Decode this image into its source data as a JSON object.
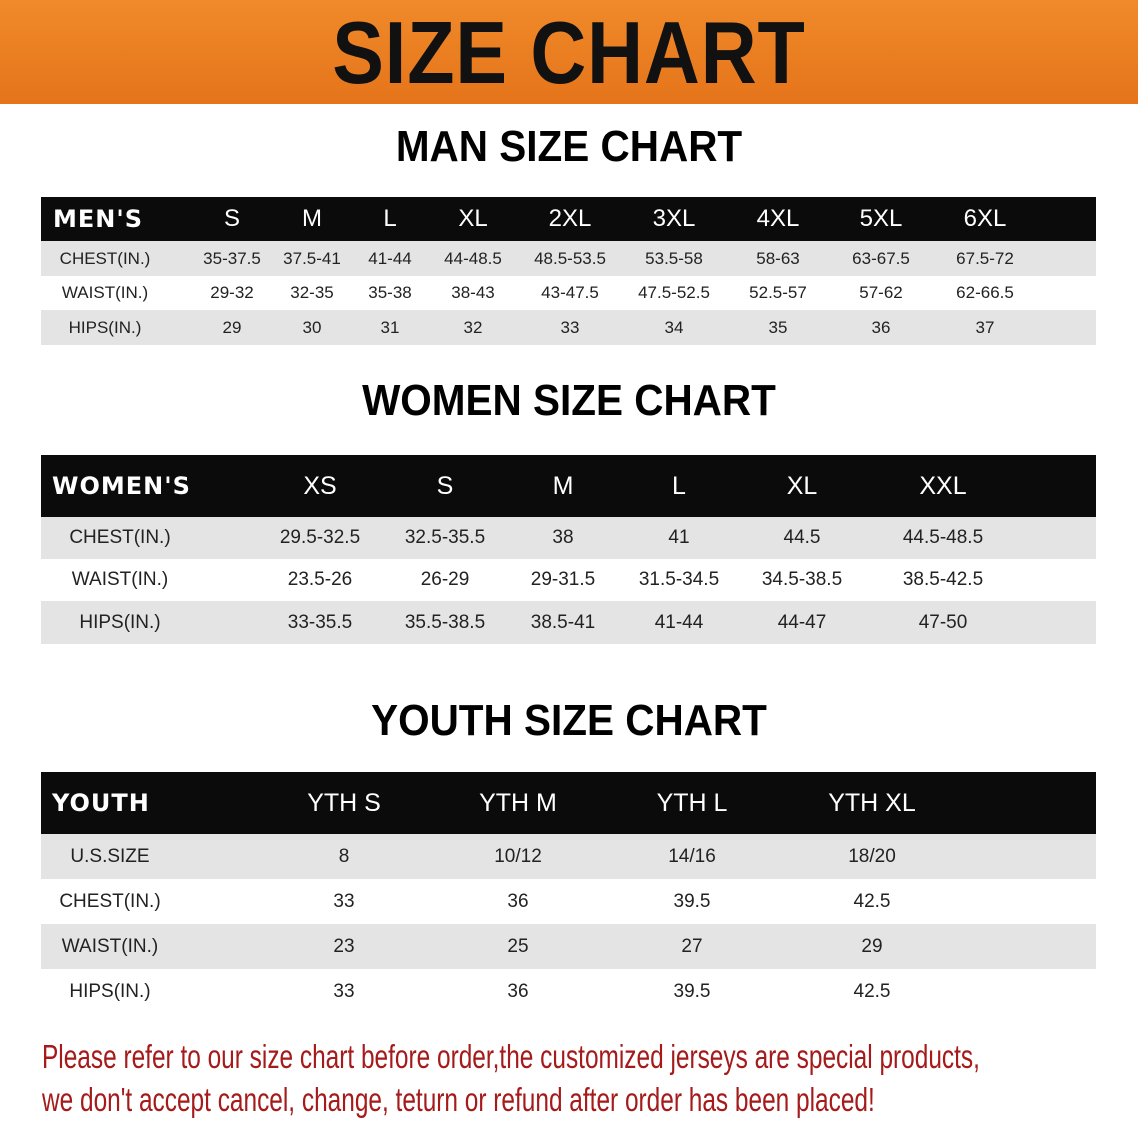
{
  "banner": {
    "title": "SIZE CHART",
    "color": "#e97d1f"
  },
  "men": {
    "title": "MAN SIZE CHART",
    "header": [
      "MEN'S",
      "S",
      "M",
      "L",
      "XL",
      "2XL",
      "3XL",
      "4XL",
      "5XL",
      "6XL"
    ],
    "rows": [
      [
        "CHEST(IN.)",
        "35-37.5",
        "37.5-41",
        "41-44",
        "44-48.5",
        "48.5-53.5",
        "53.5-58",
        "58-63",
        "63-67.5",
        "67.5-72"
      ],
      [
        "WAIST(IN.)",
        "29-32",
        "32-35",
        "35-38",
        "38-43",
        "43-47.5",
        "47.5-52.5",
        "52.5-57",
        "57-62",
        "62-66.5"
      ],
      [
        "HIPS(IN.)",
        "29",
        "30",
        "31",
        "32",
        "33",
        "34",
        "35",
        "36",
        "37"
      ]
    ]
  },
  "women": {
    "title": "WOMEN SIZE CHART",
    "header": [
      "WOMEN'S",
      "XS",
      "S",
      "M",
      "L",
      "XL",
      "XXL"
    ],
    "rows": [
      [
        "CHEST(IN.)",
        "29.5-32.5",
        "32.5-35.5",
        "38",
        "41",
        "44.5",
        "44.5-48.5"
      ],
      [
        "WAIST(IN.)",
        "23.5-26",
        "26-29",
        "29-31.5",
        "31.5-34.5",
        "34.5-38.5",
        "38.5-42.5"
      ],
      [
        "HIPS(IN.)",
        "33-35.5",
        "35.5-38.5",
        "38.5-41",
        "41-44",
        "44-47",
        "47-50"
      ]
    ]
  },
  "youth": {
    "title": "YOUTH SIZE CHART",
    "header": [
      "YOUTH",
      "YTH S",
      "YTH M",
      "YTH L",
      "YTH XL"
    ],
    "rows": [
      [
        "U.S.SIZE",
        "8",
        "10/12",
        "14/16",
        "18/20"
      ],
      [
        "CHEST(IN.)",
        "33",
        "36",
        "39.5",
        "42.5"
      ],
      [
        "WAIST(IN.)",
        "23",
        "25",
        "27",
        "29"
      ],
      [
        "HIPS(IN.)",
        "33",
        "36",
        "39.5",
        "42.5"
      ]
    ]
  },
  "note": {
    "line1": "Please refer to our size chart before order,the customized jerseys are special products,",
    "line2": "we don't accept cancel, change, teturn or refund after order has been placed!",
    "color": "#a51a1a"
  }
}
